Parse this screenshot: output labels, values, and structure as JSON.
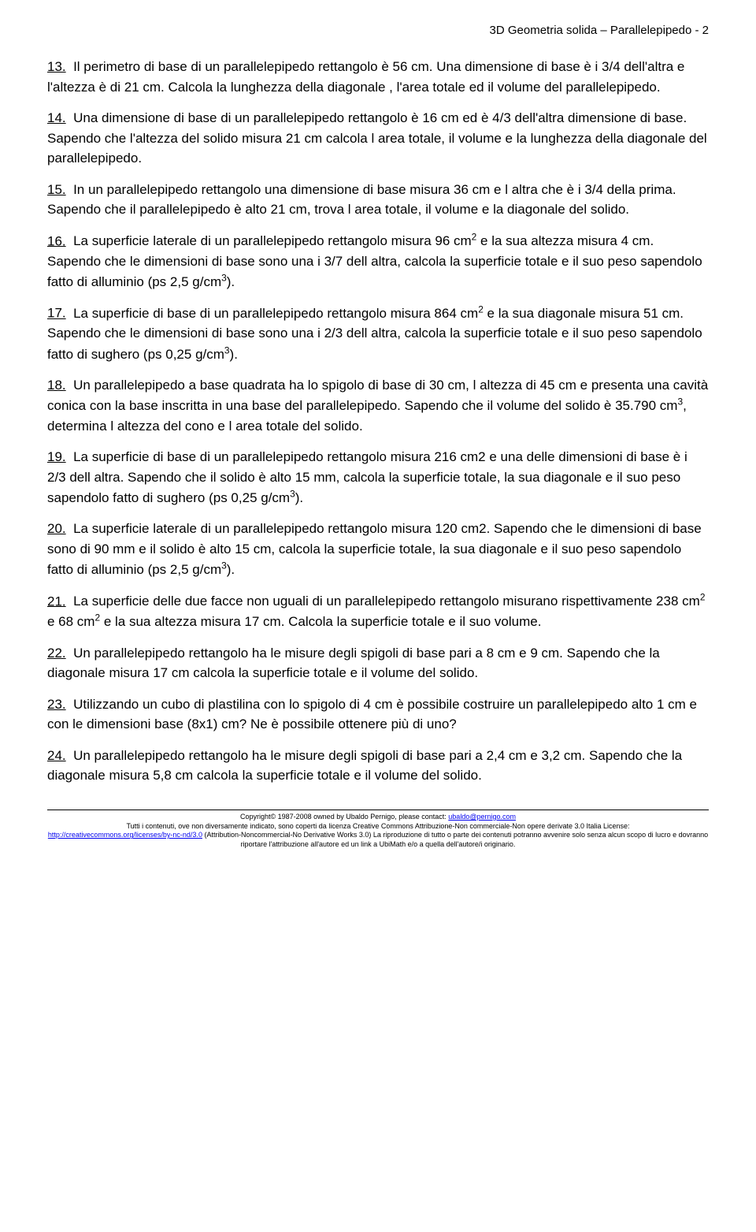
{
  "header": "3D Geometria solida – Parallelepipedo - 2",
  "problems": [
    {
      "num": "13.",
      "text": "Il perimetro di base di un parallelepipedo rettangolo è 56 cm. Una dimensione di base è i 3/4 dell'altra e l'altezza è di 21 cm. Calcola la lunghezza della diagonale , l'area totale ed il volume del parallelepipedo."
    },
    {
      "num": "14.",
      "text": "Una dimensione di base di un parallelepipedo rettangolo è 16 cm ed è 4/3 dell'altra dimensione di base. Sapendo che l'altezza del solido misura 21 cm calcola l area totale, il volume e la lunghezza della diagonale del parallelepipedo."
    },
    {
      "num": "15.",
      "text": "In un parallelepipedo rettangolo una dimensione di base misura 36 cm e l altra che è i 3/4 della prima. Sapendo che il parallelepipedo è alto 21 cm, trova l area totale, il volume e la diagonale del solido."
    },
    {
      "num": "16.",
      "text": "La superficie laterale di un parallelepipedo rettangolo misura 96 cm<sup>2</sup> e la sua altezza misura 4 cm. Sapendo che le dimensioni di base sono una i 3/7 dell altra, calcola la superficie totale e il suo peso sapendolo fatto di alluminio (ps 2,5 g/cm<sup>3</sup>)."
    },
    {
      "num": "17.",
      "text": "La superficie di base di un parallelepipedo rettangolo misura 864 cm<sup>2</sup> e la sua diagonale misura 51 cm. Sapendo che le dimensioni di base sono una i 2/3 dell altra, calcola la superficie totale e il suo peso sapendolo fatto di sughero (ps 0,25 g/cm<sup>3</sup>)."
    },
    {
      "num": "18.",
      "text": "Un parallelepipedo a base quadrata ha lo spigolo di base di 30 cm, l altezza di 45 cm e presenta una cavità conica con la base inscritta in una base del parallelepipedo. Sapendo che il volume del solido è 35.790 cm<sup>3</sup>, determina l altezza del cono e l area totale del solido."
    },
    {
      "num": "19.",
      "text": "La superficie di base di un parallelepipedo rettangolo misura 216 cm2 e una delle dimensioni di base è i 2/3 dell altra. Sapendo che il solido è alto 15 mm, calcola la superficie totale, la sua diagonale e il suo peso sapendolo fatto di sughero (ps 0,25 g/cm<sup>3</sup>)."
    },
    {
      "num": "20.",
      "text": "La superficie laterale di un parallelepipedo rettangolo misura 120 cm2. Sapendo che le dimensioni di base sono di 90 mm e il solido è alto 15 cm, calcola la superficie totale, la sua diagonale e il suo peso sapendolo fatto di alluminio (ps 2,5 g/cm<sup>3</sup>)."
    },
    {
      "num": "21.",
      "text": "La superficie delle due facce non uguali di un parallelepipedo rettangolo misurano rispettivamente 238 cm<sup>2</sup> e 68 cm<sup>2</sup> e la sua altezza misura 17 cm. Calcola la superficie totale e il suo volume."
    },
    {
      "num": "22.",
      "text": "Un parallelepipedo rettangolo ha le misure degli spigoli di base pari a 8 cm e 9 cm. Sapendo che la diagonale misura 17 cm calcola la superficie totale e il volume del solido."
    },
    {
      "num": "23.",
      "text": "Utilizzando un cubo di plastilina con lo spigolo di 4 cm è possibile costruire un parallelepipedo alto 1 cm e con le dimensioni base (8x1) cm? Ne è possibile ottenere più di uno?"
    },
    {
      "num": "24.",
      "text": "Un parallelepipedo rettangolo ha le misure degli spigoli di base pari a 2,4 cm e 3,2 cm. Sapendo che la diagonale misura 5,8 cm calcola la superficie totale e il volume del solido."
    }
  ],
  "footer": {
    "line1_prefix": "Copyright© 1987-2008 owned by Ubaldo Pernigo, please contact: ",
    "email": "ubaldo@pernigo.com",
    "line2": "Tutti i contenuti, ove non diversamente indicato, sono coperti da licenza Creative Commons Attribuzione-Non commerciale-Non opere derivate 3.0 Italia License:",
    "link": "http://creativecommons.org/licenses/by-nc-nd/3.0",
    "line3": " (Attribution-Noncommercial-No Derivative Works 3.0) La riproduzione di tutto o parte dei contenuti potranno avvenire solo senza alcun scopo di lucro e dovranno riportare l'attribuzione all'autore ed un link a UbiMath e/o a quella dell'autore/i originario."
  }
}
